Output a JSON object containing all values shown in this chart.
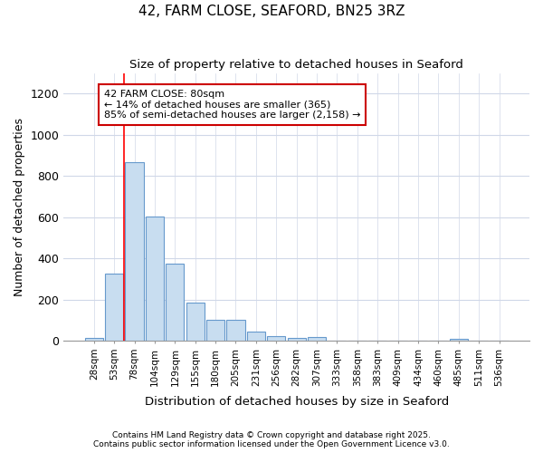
{
  "title1": "42, FARM CLOSE, SEAFORD, BN25 3RZ",
  "title2": "Size of property relative to detached houses in Seaford",
  "xlabel": "Distribution of detached houses by size in Seaford",
  "ylabel": "Number of detached properties",
  "categories": [
    "28sqm",
    "53sqm",
    "78sqm",
    "104sqm",
    "129sqm",
    "155sqm",
    "180sqm",
    "205sqm",
    "231sqm",
    "256sqm",
    "282sqm",
    "307sqm",
    "333sqm",
    "358sqm",
    "383sqm",
    "409sqm",
    "434sqm",
    "460sqm",
    "485sqm",
    "511sqm",
    "536sqm"
  ],
  "values": [
    15,
    325,
    865,
    605,
    375,
    185,
    100,
    100,
    45,
    22,
    15,
    20,
    0,
    0,
    0,
    0,
    0,
    0,
    8,
    0,
    0
  ],
  "bar_color": "#c8ddf0",
  "bar_edge_color": "#6699cc",
  "red_line_index": 2,
  "annotation_text": "42 FARM CLOSE: 80sqm\n← 14% of detached houses are smaller (365)\n85% of semi-detached houses are larger (2,158) →",
  "annotation_box_color": "#ffffff",
  "annotation_box_edge": "#cc0000",
  "ylim": [
    0,
    1300
  ],
  "yticks": [
    0,
    200,
    400,
    600,
    800,
    1000,
    1200
  ],
  "footer1": "Contains HM Land Registry data © Crown copyright and database right 2025.",
  "footer2": "Contains public sector information licensed under the Open Government Licence v3.0.",
  "bg_color": "#ffffff",
  "plot_bg_color": "#ffffff",
  "grid_color": "#d0d8e8"
}
